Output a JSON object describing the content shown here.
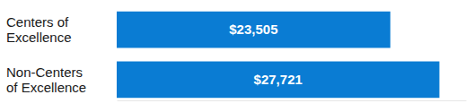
{
  "chart_data": {
    "type": "bar",
    "orientation": "horizontal",
    "categories": [
      "Centers of Excellence",
      "Non-Centers of Excellence"
    ],
    "values": [
      23505,
      27721
    ],
    "value_labels": [
      "$23,505",
      "$27,721"
    ],
    "color": "#0a7cd3",
    "xlim": [
      0,
      30000
    ],
    "data_labels": true,
    "tick_labels": false,
    "grid": false
  }
}
